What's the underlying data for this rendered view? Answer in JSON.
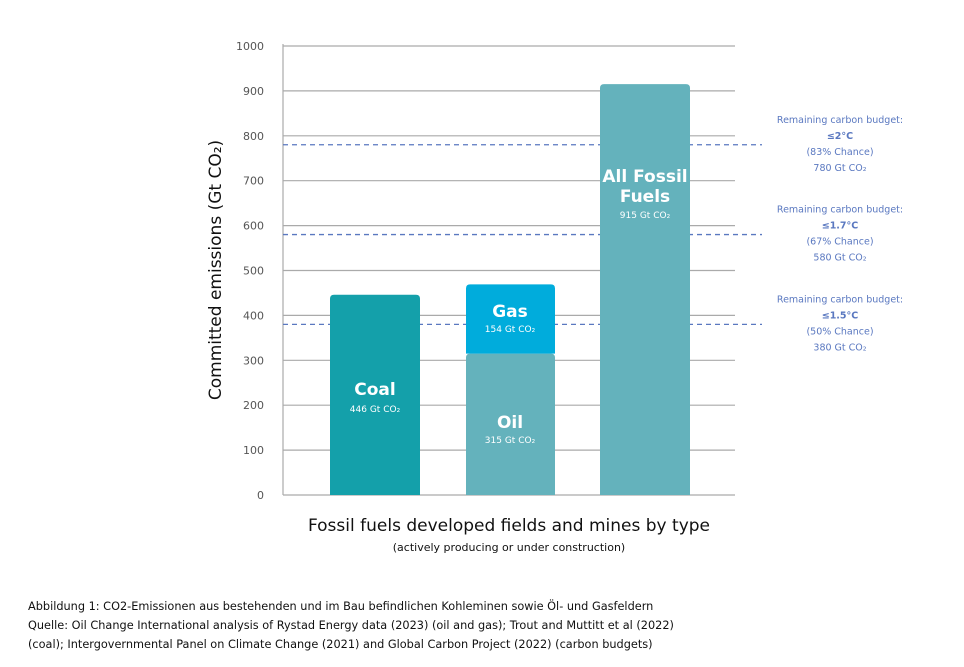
{
  "chart_data": {
    "type": "bar",
    "ylabel": "Committed emissions (Gt CO₂)",
    "xlabel": "Fossil fuels developed fields and mines by type",
    "xlabel_sub": "(actively producing or under construction)",
    "ylim": [
      0,
      1000
    ],
    "yticks": [
      0,
      100,
      200,
      300,
      400,
      500,
      600,
      700,
      800,
      900,
      1000
    ],
    "grid": true,
    "bars": [
      {
        "name": "Coal",
        "label": "446 Gt CO₂",
        "bottom": 0,
        "value": 446,
        "color": "#14a0aa"
      },
      {
        "name": "Oil",
        "label": "315 Gt CO₂",
        "bottom": 0,
        "value": 315,
        "color": "#64b2bc"
      },
      {
        "name": "Gas",
        "label": "154 Gt CO₂",
        "bottom": 315,
        "value": 154,
        "color": "#00acdc"
      },
      {
        "name": "All Fossil Fuels",
        "label": "915 Gt CO₂",
        "bottom": 0,
        "value": 915,
        "color": "#64b2bc"
      }
    ],
    "budgets": [
      {
        "title": "Remaining carbon budget:",
        "temp": "≤2°C",
        "chance": "(83% Chance)",
        "label": "780 Gt CO₂",
        "value": 780
      },
      {
        "title": "Remaining carbon budget:",
        "temp": "≤1.7°C",
        "chance": "(67% Chance)",
        "label": "580 Gt CO₂",
        "value": 580
      },
      {
        "title": "Remaining carbon budget:",
        "temp": "≤1.5°C",
        "chance": "(50% Chance)",
        "label": "380 Gt CO₂",
        "value": 380
      }
    ],
    "budget_color": "#5a78c0"
  },
  "caption": {
    "line1": "Abbildung 1: CO2-Emissionen aus bestehenden und im Bau befindlichen Kohleminen sowie Öl- und Gasfeldern",
    "line2": "Quelle: Oil Change International analysis of Rystad Energy data (2023) (oil and gas); Trout and Muttitt et al (2022)",
    "line3": "(coal); Intergovernmental Panel on Climate Change (2021) and Global Carbon Project (2022) (carbon budgets)"
  }
}
